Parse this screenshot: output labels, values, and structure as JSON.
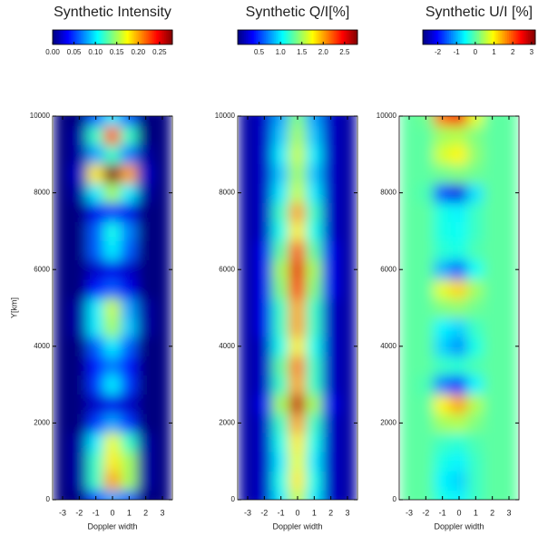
{
  "chart_data": [
    {
      "type": "heatmap",
      "title": "Synthetic Intensity",
      "xlabel": "Doppler width",
      "ylabel": "Y[km]",
      "x": [
        -3,
        -2,
        -1,
        0,
        1,
        2,
        3
      ],
      "y": [
        0,
        500,
        1000,
        1500,
        2000,
        2500,
        3000,
        3500,
        4000,
        4500,
        5000,
        5500,
        6000,
        6500,
        7000,
        7500,
        8000,
        8500,
        9000,
        9500,
        10000
      ],
      "z": [
        [
          0,
          0,
          0.05,
          0.08,
          0.06,
          0,
          0
        ],
        [
          0,
          0.01,
          0.12,
          0.2,
          0.15,
          0.01,
          0
        ],
        [
          0,
          0.01,
          0.12,
          0.18,
          0.15,
          0.01,
          0
        ],
        [
          0,
          0.01,
          0.1,
          0.17,
          0.12,
          0.01,
          0
        ],
        [
          0,
          0,
          0.05,
          0.08,
          0.05,
          0,
          0
        ],
        [
          0,
          0,
          0.02,
          0.03,
          0.02,
          0,
          0
        ],
        [
          0,
          0,
          0.05,
          0.1,
          0.05,
          0,
          0
        ],
        [
          0,
          0,
          0.04,
          0.07,
          0.04,
          0,
          0
        ],
        [
          0,
          0,
          0.06,
          0.1,
          0.06,
          0,
          0
        ],
        [
          0,
          0.01,
          0.1,
          0.15,
          0.09,
          0.01,
          0
        ],
        [
          0,
          0.01,
          0.1,
          0.16,
          0.08,
          0.01,
          0
        ],
        [
          0,
          0,
          0.04,
          0.06,
          0.03,
          0,
          0
        ],
        [
          0,
          0,
          0.02,
          0.03,
          0.02,
          0,
          0
        ],
        [
          0,
          0,
          0.06,
          0.1,
          0.06,
          0,
          0
        ],
        [
          0,
          0,
          0.06,
          0.11,
          0.07,
          0,
          0
        ],
        [
          0,
          0,
          0.03,
          0.05,
          0.03,
          0,
          0
        ],
        [
          0,
          0.01,
          0.1,
          0.15,
          0.1,
          0.01,
          0
        ],
        [
          0,
          0.02,
          0.18,
          0.28,
          0.2,
          0.02,
          0
        ],
        [
          0,
          0.01,
          0.08,
          0.12,
          0.07,
          0.01,
          0
        ],
        [
          0,
          0.01,
          0.12,
          0.22,
          0.12,
          0,
          0
        ],
        [
          0,
          0,
          0.06,
          0.1,
          0.06,
          0,
          0
        ]
      ],
      "clim": [
        0,
        0.28
      ],
      "cticks": [
        {
          "value": 0,
          "label": "0.00"
        },
        {
          "value": 0.05,
          "label": "0.05"
        },
        {
          "value": 0.1,
          "label": "0.10"
        },
        {
          "value": 0.15,
          "label": "0.15"
        },
        {
          "value": 0.2,
          "label": "0.20"
        },
        {
          "value": 0.25,
          "label": "0.25"
        }
      ],
      "xlim": [
        -3.6,
        3.6
      ],
      "xticks": [
        -3,
        -2,
        -1,
        0,
        1,
        2,
        3
      ],
      "ylim": [
        0,
        10000
      ],
      "yticks": [
        0,
        2000,
        4000,
        6000,
        8000,
        10000
      ]
    },
    {
      "type": "heatmap",
      "title": "Synthetic Q/I[%]",
      "xlabel": "Doppler width",
      "x": [
        -3,
        -2,
        -1,
        0,
        1,
        2,
        3
      ],
      "y": [
        0,
        500,
        1000,
        1500,
        2000,
        2500,
        3000,
        3500,
        4000,
        4500,
        5000,
        5500,
        6000,
        6500,
        7000,
        7500,
        8000,
        8500,
        9000,
        9500,
        10000
      ],
      "z": [
        [
          0.1,
          0.2,
          1.0,
          1.6,
          1.0,
          0.2,
          0.1
        ],
        [
          0.1,
          0.2,
          1.1,
          1.8,
          1.1,
          0.2,
          0.1
        ],
        [
          0.1,
          0.2,
          1.0,
          1.7,
          1.0,
          0.2,
          0.1
        ],
        [
          0.1,
          0.2,
          1.1,
          1.8,
          1.1,
          0.2,
          0.1
        ],
        [
          0.1,
          0.2,
          1.2,
          2.0,
          1.2,
          0.2,
          0.1
        ],
        [
          0.1,
          0.3,
          1.5,
          2.6,
          1.5,
          0.3,
          0.1
        ],
        [
          0.1,
          0.2,
          1.2,
          2.0,
          1.2,
          0.2,
          0.1
        ],
        [
          0.1,
          0.2,
          1.3,
          2.1,
          1.2,
          0.2,
          0.1
        ],
        [
          0.1,
          0.2,
          1.1,
          1.8,
          1.1,
          0.2,
          0.1
        ],
        [
          0.1,
          0.3,
          1.2,
          2.0,
          1.2,
          0.2,
          0.1
        ],
        [
          0.1,
          0.3,
          1.2,
          2.0,
          1.2,
          0.2,
          0.1
        ],
        [
          0.1,
          0.3,
          1.4,
          2.3,
          1.4,
          0.3,
          0.1
        ],
        [
          0.1,
          0.3,
          1.5,
          2.5,
          1.5,
          0.3,
          0.1
        ],
        [
          0.1,
          0.3,
          1.3,
          2.2,
          1.3,
          0.3,
          0.1
        ],
        [
          0.1,
          0.2,
          1.1,
          1.8,
          1.1,
          0.2,
          0.1
        ],
        [
          0.1,
          0.2,
          1.2,
          2.0,
          1.2,
          0.2,
          0.1
        ],
        [
          0.1,
          0.2,
          1.0,
          1.6,
          1.0,
          0.2,
          0.1
        ],
        [
          0.1,
          0.2,
          0.9,
          1.5,
          0.9,
          0.2,
          0.1
        ],
        [
          0.1,
          0.2,
          1.0,
          1.6,
          1.0,
          0.2,
          0.1
        ],
        [
          0.1,
          0.2,
          0.9,
          1.5,
          0.9,
          0.2,
          0.1
        ],
        [
          0.1,
          0.2,
          0.8,
          1.4,
          0.8,
          0.2,
          0.1
        ]
      ],
      "clim": [
        0,
        2.8
      ],
      "cticks": [
        0.5,
        {
          "value": 1,
          "label": "1.0"
        },
        1.5,
        {
          "value": 2,
          "label": "2.0"
        },
        2.5
      ],
      "xlim": [
        -3.6,
        3.6
      ],
      "xticks": [
        -3,
        -2,
        -1,
        0,
        1,
        2,
        3
      ],
      "ylim": [
        0,
        10000
      ],
      "yticks": [
        0,
        2000,
        4000,
        6000,
        8000,
        10000
      ]
    },
    {
      "type": "heatmap",
      "title": "Synthetic U/I [%]",
      "xlabel": "Doppler width",
      "x": [
        -3,
        -2,
        -1,
        0,
        1,
        2,
        3
      ],
      "y": [
        0,
        500,
        1000,
        1500,
        2000,
        2500,
        3000,
        3500,
        4000,
        4500,
        5000,
        5500,
        6000,
        6500,
        7000,
        7500,
        8000,
        8500,
        9000,
        9500,
        10000
      ],
      "z": [
        [
          0,
          0,
          -0.4,
          -0.6,
          -0.2,
          0,
          0
        ],
        [
          0,
          0,
          -0.6,
          -0.8,
          -0.2,
          0,
          0
        ],
        [
          0,
          0,
          -0.4,
          -0.6,
          -0.2,
          0,
          0
        ],
        [
          0,
          0,
          -0.2,
          -0.3,
          -0.1,
          0,
          0
        ],
        [
          0,
          0,
          0.4,
          0.5,
          0.2,
          0,
          0
        ],
        [
          0,
          0,
          1.0,
          1.5,
          0.5,
          0,
          0
        ],
        [
          0,
          -0.1,
          -1.3,
          -1.8,
          -0.6,
          0,
          0
        ],
        [
          0,
          0,
          -0.2,
          -0.3,
          -0.1,
          0,
          0
        ],
        [
          0,
          0,
          -0.8,
          -1.2,
          -0.4,
          0,
          0
        ],
        [
          0,
          0,
          -0.6,
          -0.8,
          -0.2,
          0,
          0
        ],
        [
          0,
          0,
          0.2,
          0.3,
          0.1,
          0,
          0
        ],
        [
          0,
          0,
          0.8,
          1.2,
          0.4,
          0,
          0
        ],
        [
          0,
          0,
          -1.0,
          -1.5,
          -0.5,
          0,
          0
        ],
        [
          0,
          0,
          -0.3,
          -0.4,
          -0.1,
          0,
          0
        ],
        [
          0,
          0,
          -0.4,
          -0.5,
          -0.2,
          0,
          0
        ],
        [
          0,
          0,
          -0.4,
          -0.6,
          -0.2,
          0,
          0
        ],
        [
          0,
          -0.1,
          -1.6,
          -2.2,
          -0.7,
          0,
          0
        ],
        [
          0,
          0,
          0.1,
          0.2,
          0.1,
          0,
          0
        ],
        [
          0,
          0,
          0.7,
          1.0,
          0.3,
          0,
          0
        ],
        [
          0,
          0,
          0.4,
          0.5,
          0.2,
          0,
          0
        ],
        [
          0,
          0.1,
          1.8,
          2.5,
          0.8,
          0,
          0
        ]
      ],
      "clim": [
        -2.8,
        3.2
      ],
      "cticks": [
        -2,
        -1,
        0,
        1,
        2,
        3
      ],
      "xlim": [
        -3.6,
        3.6
      ],
      "xticks": [
        -3,
        -2,
        -1,
        0,
        1,
        2,
        3
      ],
      "ylim": [
        0,
        10000
      ],
      "yticks": [
        0,
        2000,
        4000,
        6000,
        8000,
        10000
      ]
    }
  ]
}
